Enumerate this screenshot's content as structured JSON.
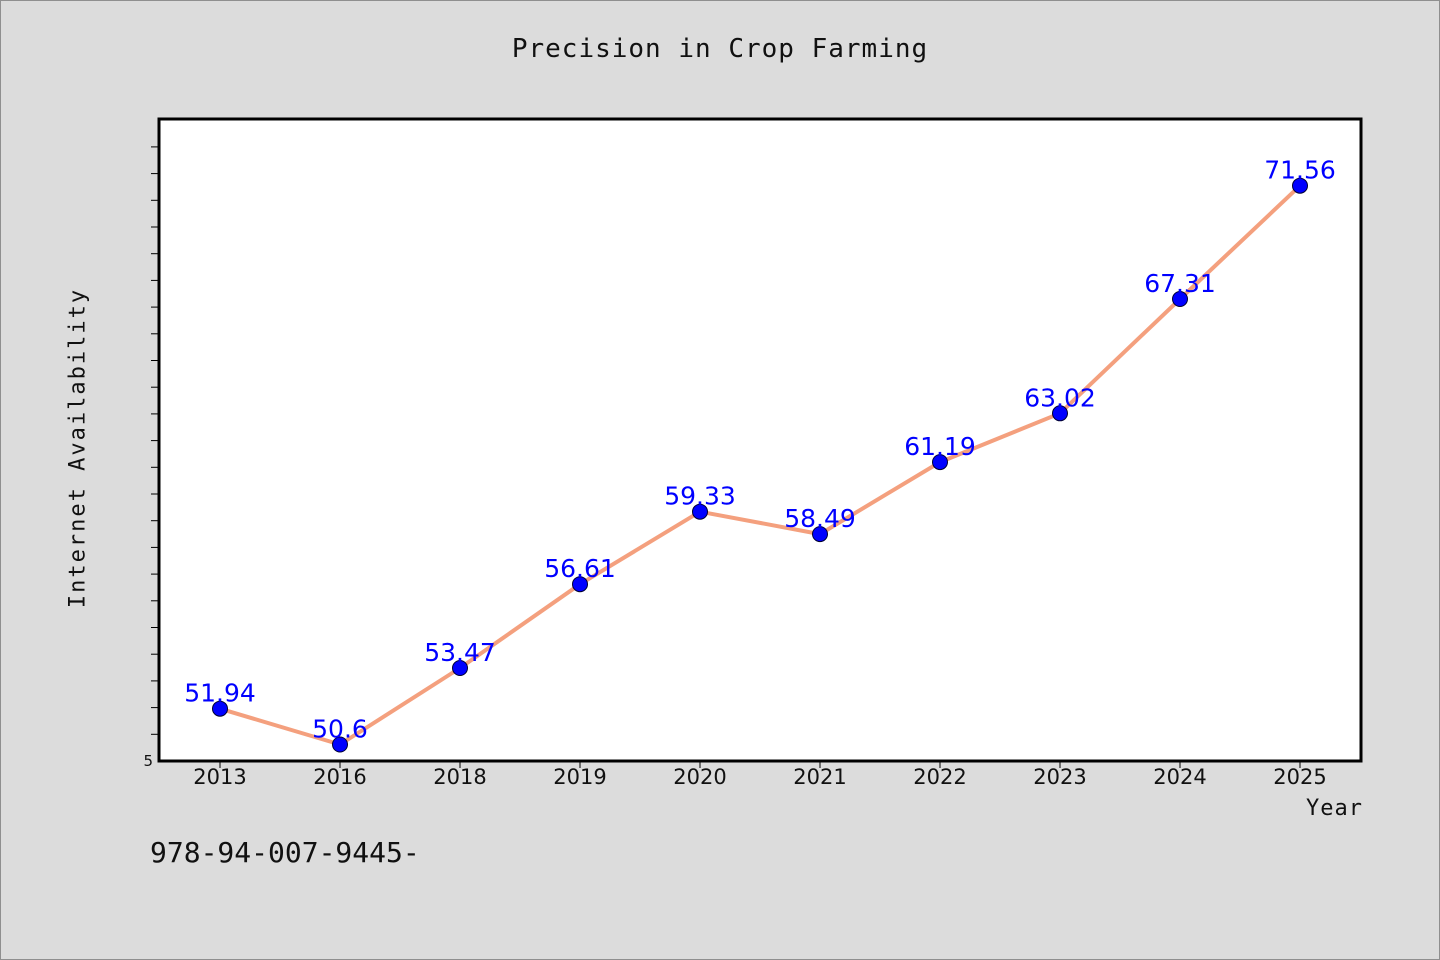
{
  "chart_data": {
    "type": "line",
    "title": "Precision in Crop Farming",
    "xlabel": "Year",
    "ylabel": "Internet Availability",
    "categories": [
      "2013",
      "2016",
      "2018",
      "2019",
      "2020",
      "2021",
      "2022",
      "2023",
      "2024",
      "2025"
    ],
    "series": [
      {
        "values": [
          51.94,
          50.6,
          53.47,
          56.61,
          59.33,
          58.49,
          61.19,
          63.02,
          67.31,
          71.56
        ],
        "labels": [
          "51.94",
          "50.6",
          "53.47",
          "56.61",
          "59.33",
          "58.49",
          "61.19",
          "63.02",
          "67.31",
          "71.56"
        ]
      }
    ],
    "yticks": [
      "5"
    ],
    "ylim": [
      49.98,
      74.06
    ],
    "grid": false,
    "legend": "none",
    "colors": {
      "line": "#f4a07e",
      "marker": "#0000ff",
      "label": "#0000ff",
      "plot_background": "#ffffff",
      "page_background": "#dcdcdc"
    }
  },
  "footnote": "978-94-007-9445-"
}
